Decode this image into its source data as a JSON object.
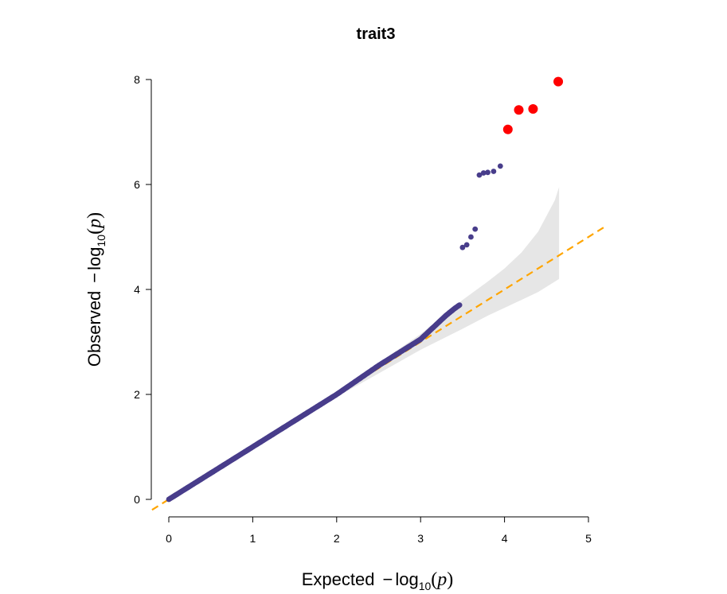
{
  "chart_data": {
    "type": "scatter",
    "title": "trait3",
    "xlabel": {
      "prefix": "Expected",
      "minus": "−",
      "log": "log",
      "base": "10",
      "open": "(",
      "var": "p",
      "close": ")"
    },
    "ylabel": {
      "prefix": "Observed",
      "minus": "−",
      "log": "log",
      "base": "10",
      "open": "(",
      "var": "p",
      "close": ")"
    },
    "xlim": [
      0,
      5
    ],
    "ylim": [
      0,
      8
    ],
    "x_ticks": [
      "0",
      "1",
      "2",
      "3",
      "4",
      "5"
    ],
    "y_ticks": [
      "0",
      "2",
      "4",
      "6",
      "8"
    ],
    "grid": false,
    "colors": {
      "points": "#483d8b",
      "significant": "#ff0000",
      "diagonal": "#ffa500",
      "confidence_band": "#e6e6e6"
    },
    "reference_line": {
      "slope": 1,
      "intercept": 0,
      "style": "dashed"
    },
    "confidence_band": {
      "x": [
        2.0,
        2.5,
        3.0,
        3.5,
        3.8,
        4.0,
        4.2,
        4.4,
        4.6,
        4.65
      ],
      "lower": [
        1.95,
        2.4,
        2.85,
        3.25,
        3.5,
        3.65,
        3.8,
        3.95,
        4.15,
        4.2
      ],
      "upper": [
        2.05,
        2.6,
        3.15,
        3.8,
        4.15,
        4.4,
        4.7,
        5.1,
        5.7,
        5.95
      ]
    },
    "series": [
      {
        "values_curve": [
          [
            0,
            0
          ],
          [
            0.5,
            0.5
          ],
          [
            1,
            1
          ],
          [
            1.5,
            1.5
          ],
          [
            2,
            2
          ],
          [
            2.5,
            2.55
          ],
          [
            2.8,
            2.85
          ],
          [
            3.0,
            3.05
          ],
          [
            3.1,
            3.2
          ],
          [
            3.2,
            3.35
          ],
          [
            3.3,
            3.5
          ],
          [
            3.4,
            3.63
          ],
          [
            3.47,
            3.71
          ]
        ],
        "points": [
          [
            3.5,
            4.8
          ],
          [
            3.55,
            4.85
          ],
          [
            3.6,
            5.0
          ],
          [
            3.65,
            5.15
          ],
          [
            3.7,
            6.18
          ],
          [
            3.75,
            6.22
          ],
          [
            3.8,
            6.23
          ],
          [
            3.87,
            6.25
          ],
          [
            3.95,
            6.35
          ]
        ]
      },
      {
        "points": [
          [
            4.04,
            7.05
          ],
          [
            4.17,
            7.42
          ],
          [
            4.34,
            7.44
          ],
          [
            4.64,
            7.96
          ]
        ]
      }
    ]
  }
}
